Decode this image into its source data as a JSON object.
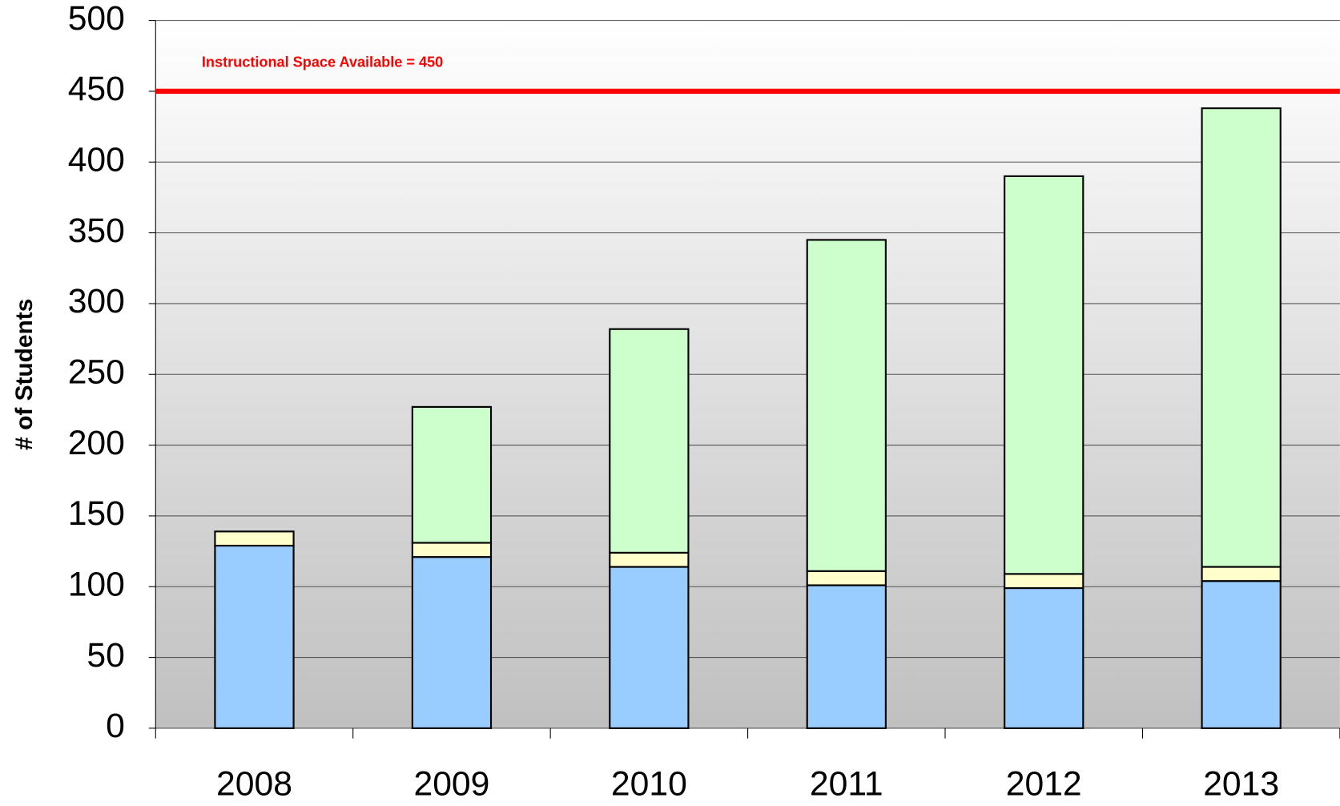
{
  "chart_data": {
    "type": "stacked_bar",
    "y_label": "# of Students",
    "categories": [
      "2008",
      "2009",
      "2010",
      "2011",
      "2012",
      "2013"
    ],
    "series": [
      {
        "color": "#99ccff",
        "values": [
          129,
          121,
          114,
          101,
          99,
          104
        ]
      },
      {
        "color": "#ffffcc",
        "values": [
          10,
          10,
          10,
          10,
          10,
          10
        ]
      },
      {
        "color": "#ccffcc",
        "values": [
          0,
          96,
          158,
          234,
          281,
          324
        ]
      }
    ],
    "ylim": [
      0,
      500
    ],
    "yticks": [
      0,
      50,
      100,
      150,
      200,
      250,
      300,
      350,
      400,
      450,
      500
    ],
    "grid": true,
    "reference_line": {
      "value": 450,
      "label": "Instructional Space Available = 450",
      "color": "#ff0000"
    }
  }
}
